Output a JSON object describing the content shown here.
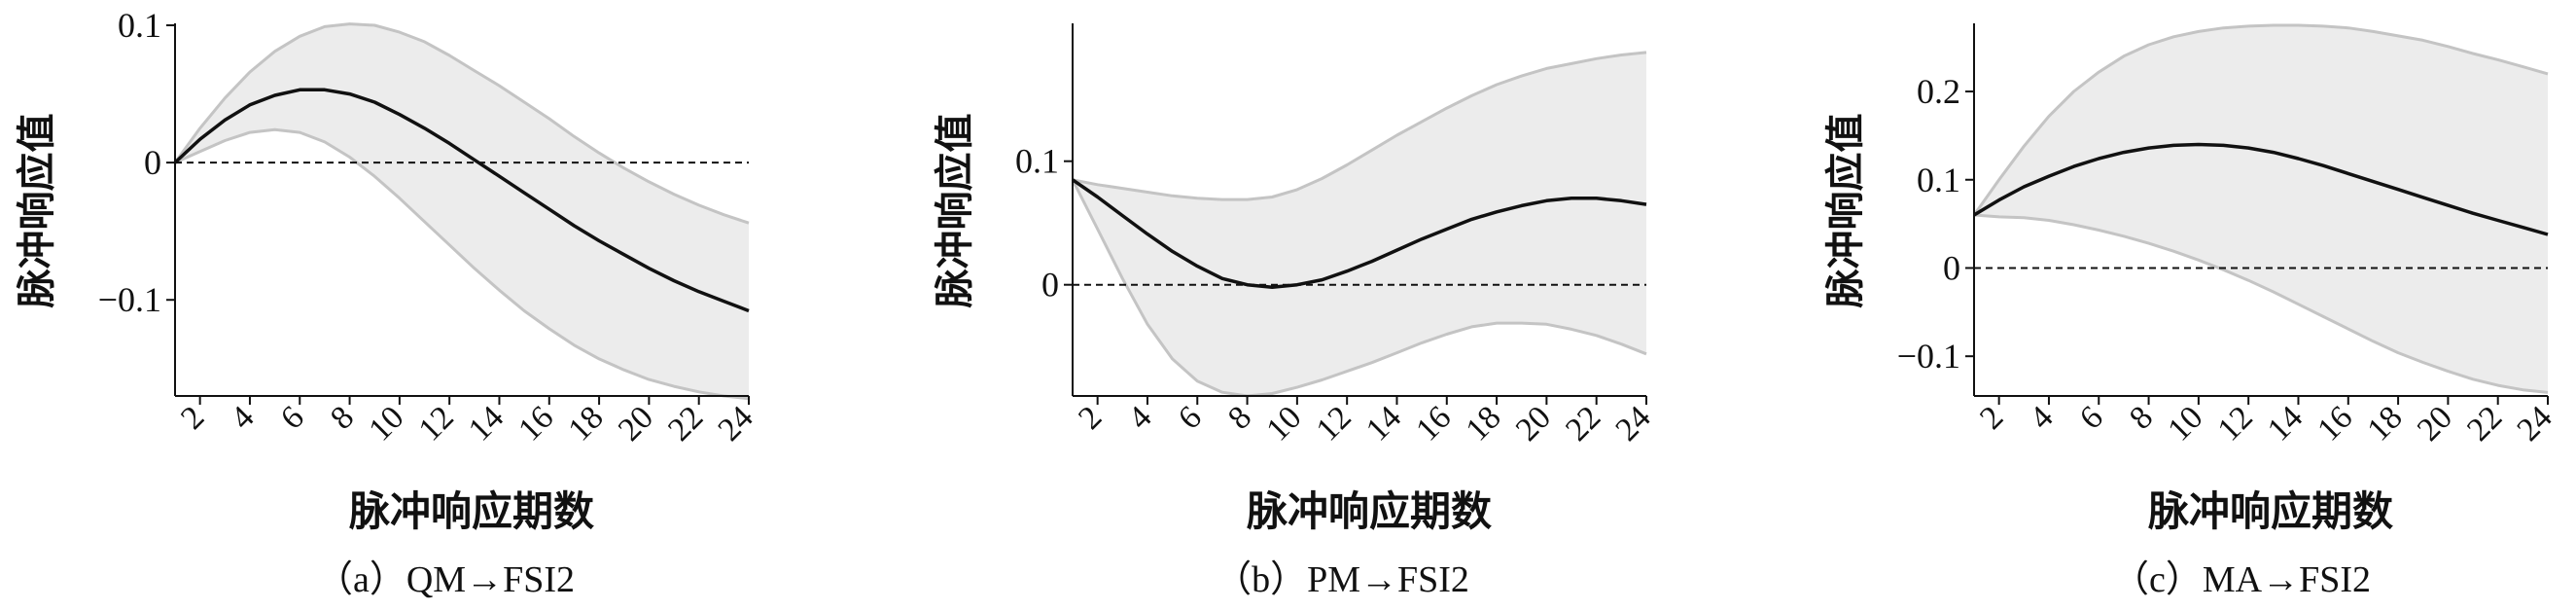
{
  "chart_data": [
    {
      "type": "line",
      "caption": "（a）QM→FSI2",
      "xlabel": "脉冲响应期数",
      "ylabel": "脉冲响应值",
      "x": [
        1,
        2,
        3,
        4,
        5,
        6,
        7,
        8,
        9,
        10,
        11,
        12,
        13,
        14,
        15,
        16,
        17,
        18,
        19,
        20,
        21,
        22,
        23,
        24
      ],
      "xticks": [
        2,
        4,
        6,
        8,
        10,
        12,
        14,
        16,
        18,
        20,
        22,
        24
      ],
      "ylim": [
        -0.17,
        0.1
      ],
      "yticks": [
        {
          "value": 0.1,
          "label": "0.1"
        },
        {
          "value": 0,
          "label": "0"
        },
        {
          "value": -0.1,
          "label": "−0.1"
        }
      ],
      "reference_line": 0,
      "series": [
        {
          "role": "lower",
          "values": [
            0,
            0.008,
            0.016,
            0.022,
            0.024,
            0.022,
            0.015,
            0.004,
            -0.01,
            -0.026,
            -0.043,
            -0.06,
            -0.077,
            -0.093,
            -0.108,
            -0.121,
            -0.133,
            -0.143,
            -0.151,
            -0.158,
            -0.163,
            -0.167,
            -0.17,
            -0.172
          ]
        },
        {
          "role": "upper",
          "values": [
            0,
            0.025,
            0.047,
            0.066,
            0.081,
            0.092,
            0.099,
            0.101,
            0.1,
            0.095,
            0.088,
            0.078,
            0.067,
            0.056,
            0.044,
            0.032,
            0.019,
            0.007,
            -0.004,
            -0.014,
            -0.023,
            -0.031,
            -0.038,
            -0.044
          ]
        },
        {
          "role": "estimate",
          "values": [
            0,
            0.017,
            0.031,
            0.042,
            0.049,
            0.053,
            0.053,
            0.05,
            0.044,
            0.035,
            0.025,
            0.014,
            0.002,
            -0.01,
            -0.022,
            -0.034,
            -0.046,
            -0.057,
            -0.067,
            -0.077,
            -0.086,
            -0.094,
            -0.101,
            -0.108
          ]
        }
      ]
    },
    {
      "type": "line",
      "caption": "（b）PM→FSI2",
      "xlabel": "脉冲响应期数",
      "ylabel": "脉冲响应值",
      "x": [
        1,
        2,
        3,
        4,
        5,
        6,
        7,
        8,
        9,
        10,
        11,
        12,
        13,
        14,
        15,
        16,
        17,
        18,
        19,
        20,
        21,
        22,
        23,
        24
      ],
      "xticks": [
        2,
        4,
        6,
        8,
        10,
        12,
        14,
        16,
        18,
        20,
        22,
        24
      ],
      "ylim": [
        -0.09,
        0.21
      ],
      "yticks": [
        {
          "value": 0.1,
          "label": "0.1"
        },
        {
          "value": 0,
          "label": "0"
        }
      ],
      "reference_line": 0,
      "series": [
        {
          "role": "lower",
          "values": [
            0.085,
            0.045,
            0.005,
            -0.032,
            -0.06,
            -0.078,
            -0.087,
            -0.09,
            -0.088,
            -0.083,
            -0.077,
            -0.07,
            -0.063,
            -0.055,
            -0.047,
            -0.04,
            -0.034,
            -0.031,
            -0.031,
            -0.032,
            -0.036,
            -0.041,
            -0.048,
            -0.056
          ]
        },
        {
          "role": "upper",
          "values": [
            0.085,
            0.081,
            0.078,
            0.075,
            0.072,
            0.07,
            0.069,
            0.069,
            0.071,
            0.077,
            0.086,
            0.097,
            0.109,
            0.121,
            0.132,
            0.143,
            0.153,
            0.162,
            0.169,
            0.175,
            0.179,
            0.183,
            0.186,
            0.188
          ]
        },
        {
          "role": "estimate",
          "values": [
            0.085,
            0.071,
            0.056,
            0.041,
            0.027,
            0.015,
            0.005,
            0.0,
            -0.002,
            0.0,
            0.004,
            0.011,
            0.019,
            0.028,
            0.037,
            0.045,
            0.053,
            0.059,
            0.064,
            0.068,
            0.07,
            0.07,
            0.068,
            0.065
          ]
        }
      ]
    },
    {
      "type": "line",
      "caption": "（c）MA→FSI2",
      "xlabel": "脉冲响应期数",
      "ylabel": "脉冲响应值",
      "x": [
        1,
        2,
        3,
        4,
        5,
        6,
        7,
        8,
        9,
        10,
        11,
        12,
        13,
        14,
        15,
        16,
        17,
        18,
        19,
        20,
        21,
        22,
        23,
        24
      ],
      "xticks": [
        2,
        4,
        6,
        8,
        10,
        12,
        14,
        16,
        18,
        20,
        22,
        24
      ],
      "ylim": [
        -0.145,
        0.275
      ],
      "yticks": [
        {
          "value": 0.2,
          "label": "0.2"
        },
        {
          "value": 0.1,
          "label": "0.1"
        },
        {
          "value": 0,
          "label": "0"
        },
        {
          "value": -0.1,
          "label": "−0.1"
        }
      ],
      "reference_line": 0,
      "series": [
        {
          "role": "lower",
          "values": [
            0.06,
            0.058,
            0.057,
            0.054,
            0.049,
            0.043,
            0.036,
            0.028,
            0.019,
            0.009,
            -0.002,
            -0.014,
            -0.027,
            -0.041,
            -0.055,
            -0.069,
            -0.083,
            -0.096,
            -0.107,
            -0.117,
            -0.126,
            -0.133,
            -0.138,
            -0.141
          ]
        },
        {
          "role": "upper",
          "values": [
            0.06,
            0.1,
            0.138,
            0.172,
            0.2,
            0.222,
            0.24,
            0.253,
            0.262,
            0.268,
            0.272,
            0.274,
            0.275,
            0.275,
            0.274,
            0.272,
            0.268,
            0.263,
            0.258,
            0.251,
            0.243,
            0.236,
            0.228,
            0.22
          ]
        },
        {
          "role": "estimate",
          "values": [
            0.06,
            0.077,
            0.092,
            0.104,
            0.115,
            0.124,
            0.131,
            0.136,
            0.139,
            0.14,
            0.139,
            0.136,
            0.131,
            0.124,
            0.116,
            0.107,
            0.098,
            0.089,
            0.08,
            0.071,
            0.062,
            0.054,
            0.046,
            0.038
          ]
        }
      ]
    }
  ]
}
